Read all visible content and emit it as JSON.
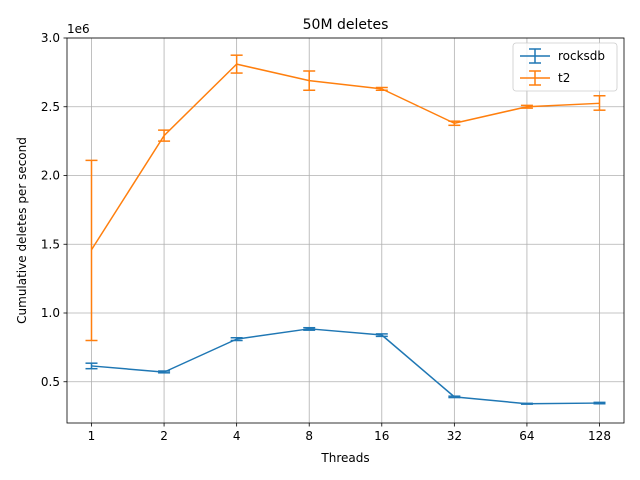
{
  "chart_data": {
    "type": "line",
    "title": "50M deletes",
    "xlabel": "Threads",
    "ylabel": "Cumulative deletes per second",
    "y_offset_label": "1e6",
    "categories": [
      "1",
      "2",
      "4",
      "8",
      "16",
      "32",
      "64",
      "128"
    ],
    "ylim": [
      200000,
      3000000
    ],
    "yticks": [
      500000,
      1000000,
      1500000,
      2000000,
      2500000,
      3000000
    ],
    "ytick_labels": [
      "0.5",
      "1.0",
      "1.5",
      "2.0",
      "2.5",
      "3.0"
    ],
    "grid": true,
    "legend_position": "top-right",
    "series": [
      {
        "name": "rocksdb",
        "color": "#1f77b4",
        "values": [
          615000,
          570000,
          810000,
          885000,
          840000,
          390000,
          340000,
          345000
        ],
        "err_low": [
          595000,
          565000,
          800000,
          875000,
          830000,
          385000,
          337000,
          340000
        ],
        "err_high": [
          635000,
          578000,
          820000,
          893000,
          848000,
          395000,
          343000,
          350000
        ]
      },
      {
        "name": "t2",
        "color": "#ff7f0e",
        "values": [
          1460000,
          2290000,
          2810000,
          2690000,
          2630000,
          2380000,
          2500000,
          2525000
        ],
        "err_low": [
          800000,
          2250000,
          2745000,
          2620000,
          2620000,
          2365000,
          2490000,
          2475000
        ],
        "err_high": [
          2110000,
          2330000,
          2875000,
          2760000,
          2640000,
          2395000,
          2510000,
          2580000
        ]
      }
    ]
  }
}
